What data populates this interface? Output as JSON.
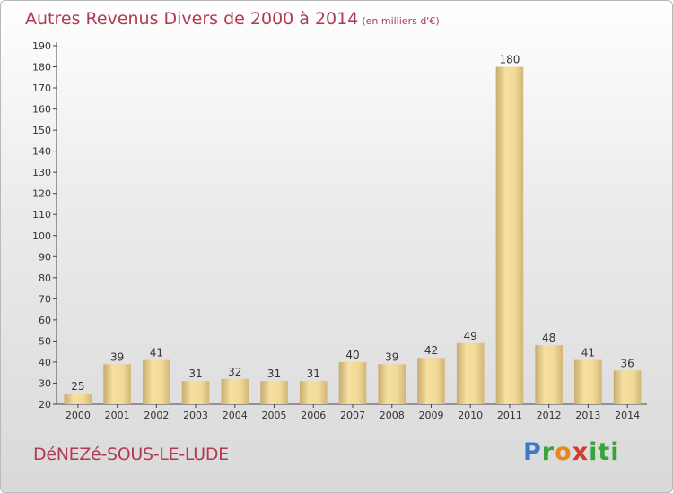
{
  "title": "Autres Revenus Divers de 2000 à 2014",
  "unit": "(en milliers d'€)",
  "town": "DéNEZé-SOUS-LE-LUDE",
  "logo": [
    "P",
    "r",
    "o",
    "x",
    "iti"
  ],
  "colors": {
    "title": "#b03a52",
    "bar_light": "#f3dc9a",
    "bar_dark": "#cdb072"
  },
  "chart_data": {
    "type": "bar",
    "title": "Autres Revenus Divers de 2000 à 2014",
    "ylabel": "",
    "xlabel": "",
    "categories": [
      "2000",
      "2001",
      "2002",
      "2003",
      "2004",
      "2005",
      "2006",
      "2007",
      "2008",
      "2009",
      "2010",
      "2011",
      "2012",
      "2013",
      "2014"
    ],
    "values": [
      25,
      39,
      41,
      31,
      32,
      31,
      31,
      40,
      39,
      42,
      49,
      180,
      48,
      41,
      36
    ],
    "ylim": [
      20,
      190
    ],
    "yticks": [
      20,
      30,
      40,
      50,
      60,
      70,
      80,
      90,
      100,
      110,
      120,
      130,
      140,
      150,
      160,
      170,
      180,
      190
    ],
    "grid": false
  }
}
